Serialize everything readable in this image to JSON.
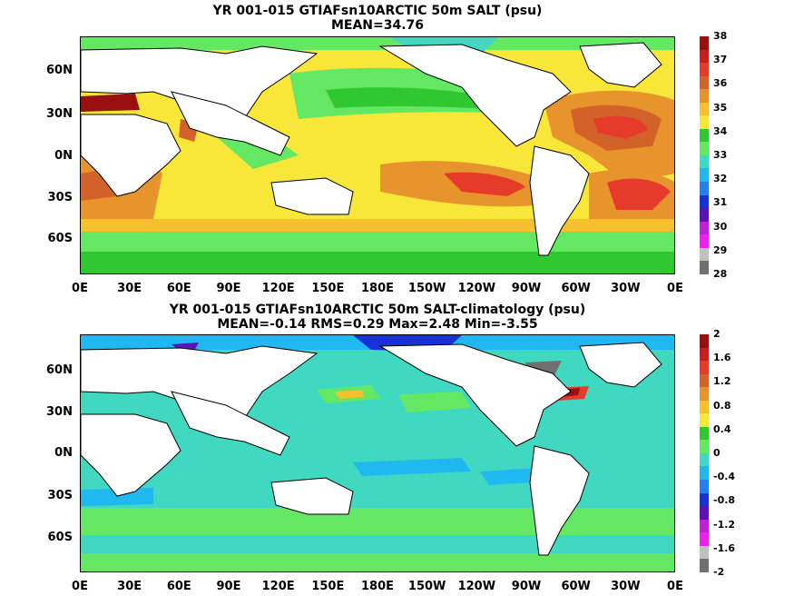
{
  "panels": [
    {
      "title_line1": "YR 001-015 GTIAFsn10ARCTIC 50m SALT (psu)",
      "title_line2": "MEAN=34.76",
      "colorbar_labels": [
        "38",
        "37",
        "36",
        "35",
        "34",
        "33",
        "32",
        "31",
        "30",
        "29",
        "28"
      ],
      "colorbar_colors": [
        "#9a1010",
        "#c81e1e",
        "#e63a2a",
        "#d2622a",
        "#e8942c",
        "#f5c02c",
        "#f8e638",
        "#30c830",
        "#64e864",
        "#40d8c0",
        "#20b8f0",
        "#2080f0",
        "#1830d8",
        "#6010b8",
        "#c020d8",
        "#f020f0",
        "#c0c0c0",
        "#707070"
      ]
    },
    {
      "title_line1": "YR 001-015 GTIAFsn10ARCTIC 50m SALT-climatology (psu)",
      "title_line2": "MEAN=-0.14   RMS=0.29   Max=2.48   Min=-3.55",
      "colorbar_labels": [
        "2",
        "1.6",
        "1.2",
        "0.8",
        "0.4",
        "0",
        "-0.4",
        "-0.8",
        "-1.2",
        "-1.6",
        "-2"
      ],
      "colorbar_colors": [
        "#9a1010",
        "#c81e1e",
        "#e63a2a",
        "#d2622a",
        "#e8942c",
        "#f5c02c",
        "#f8e638",
        "#30c830",
        "#64e864",
        "#40d8c0",
        "#20b8f0",
        "#2080f0",
        "#1830d8",
        "#6010b8",
        "#c020d8",
        "#f020f0",
        "#c0c0c0",
        "#707070"
      ]
    }
  ],
  "lat_labels": [
    "60N",
    "30N",
    "0N",
    "30S",
    "60S"
  ],
  "lon_labels": [
    "0E",
    "30E",
    "60E",
    "90E",
    "120E",
    "150E",
    "180E",
    "150W",
    "120W",
    "90W",
    "60W",
    "30W",
    "0E"
  ]
}
